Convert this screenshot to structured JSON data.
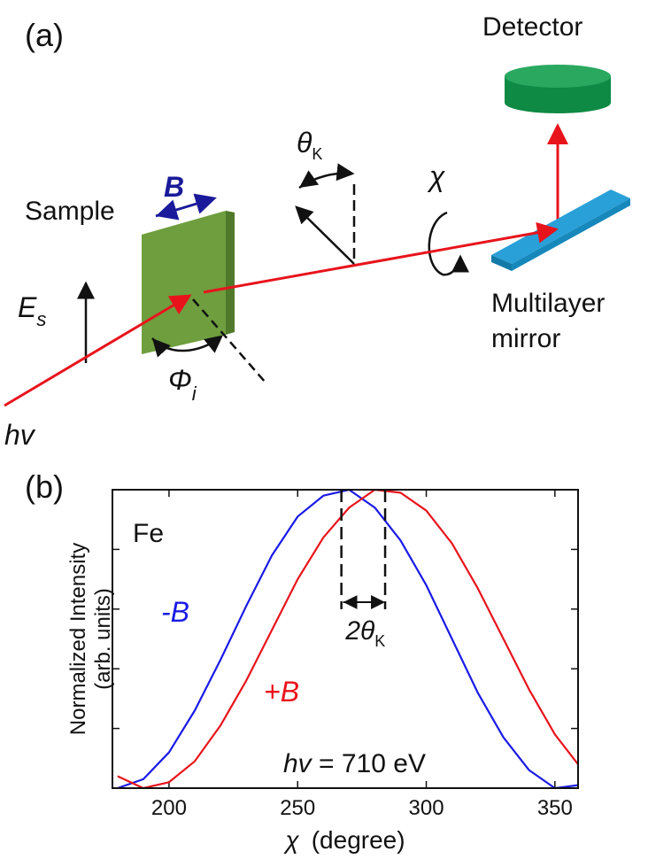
{
  "diagram": {
    "panel_label": "(a)",
    "detector": "Detector",
    "theta": [
      "θ",
      "K"
    ],
    "chi": "χ",
    "field": "B",
    "sample": "Sample",
    "polarization": [
      "E",
      "s"
    ],
    "incidence_angle": [
      "Φ",
      "i"
    ],
    "photon": "hv",
    "mirror": [
      "Multilayer",
      "mirror"
    ]
  },
  "chart_data": {
    "type": "line",
    "panel_label": "(b)",
    "x": [
      180,
      190,
      200,
      210,
      220,
      230,
      240,
      250,
      260,
      270,
      280,
      290,
      300,
      310,
      320,
      330,
      340,
      350,
      359
    ],
    "series": [
      {
        "name": "-B",
        "color": "#1a1ae6",
        "values": [
          0.0,
          0.03,
          0.12,
          0.26,
          0.43,
          0.61,
          0.78,
          0.91,
          0.98,
          1.0,
          0.94,
          0.83,
          0.68,
          0.5,
          0.32,
          0.17,
          0.06,
          0.0,
          0.01
        ]
      },
      {
        "name": "+B",
        "color": "#e8141c",
        "values": [
          0.04,
          0.0,
          0.02,
          0.09,
          0.21,
          0.36,
          0.53,
          0.7,
          0.84,
          0.94,
          1.0,
          0.99,
          0.93,
          0.82,
          0.67,
          0.5,
          0.33,
          0.18,
          0.08
        ]
      }
    ],
    "sample_label": "Fe",
    "peak_lines": [
      267,
      284
    ],
    "shift_label": [
      "2θ",
      "K"
    ],
    "energy_label": [
      "hv",
      " = 710 eV"
    ],
    "xlabel": [
      "χ",
      "(degree)"
    ],
    "ylabel": [
      "Normalized Intensity",
      "(arb. units)"
    ],
    "xlim": [
      178,
      359
    ],
    "ylim": [
      0,
      1.0
    ],
    "xticks": [
      200,
      250,
      300,
      350
    ],
    "yticks": [
      0.2,
      0.4,
      0.6,
      0.8
    ]
  }
}
